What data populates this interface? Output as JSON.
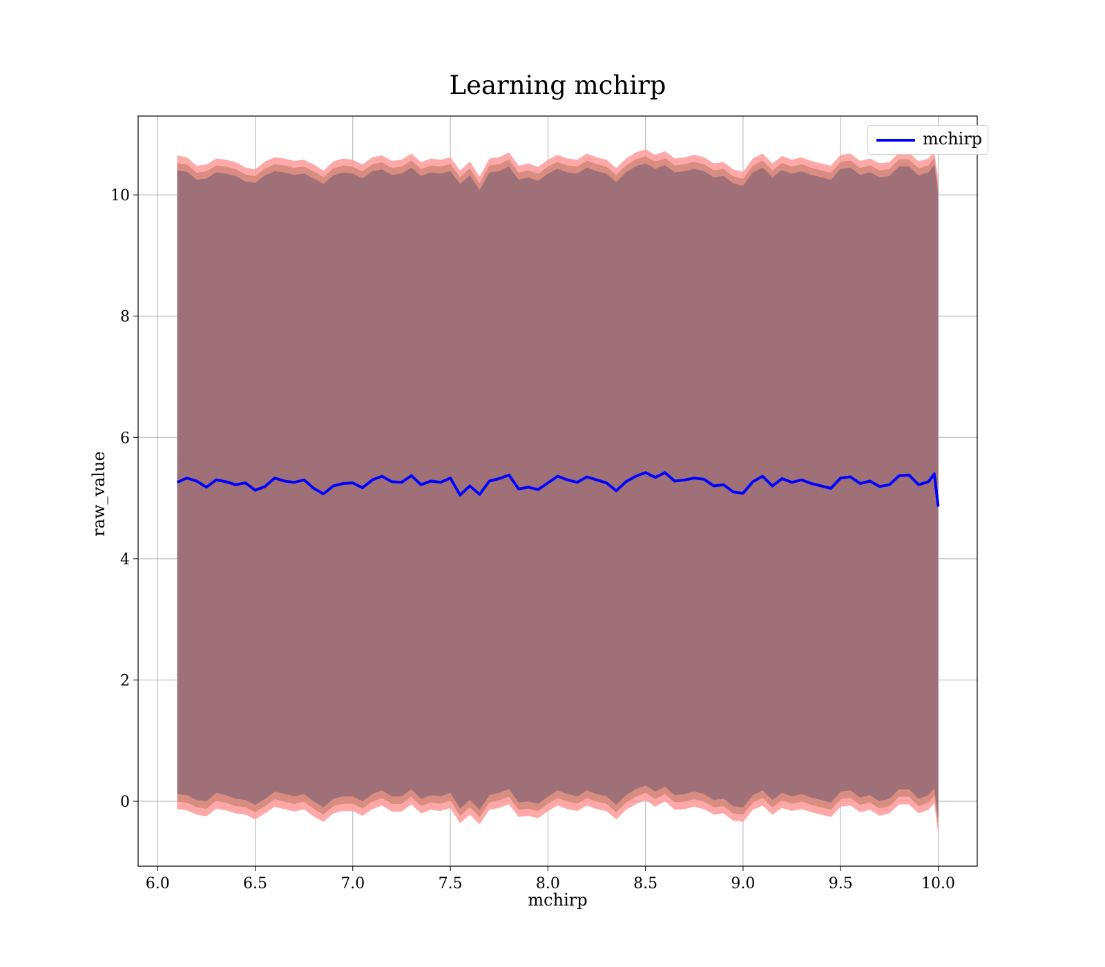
{
  "chart_data": {
    "type": "line",
    "title": "Learning mchirp",
    "xlabel": "mchirp",
    "ylabel": "raw_value",
    "xlim": [
      5.9,
      10.2
    ],
    "ylim": [
      -1.07,
      11.3
    ],
    "xticks": [
      "6.0",
      "6.5",
      "7.0",
      "7.5",
      "8.0",
      "8.5",
      "9.0",
      "9.5",
      "10.0"
    ],
    "xtick_values": [
      6.0,
      6.5,
      7.0,
      7.5,
      8.0,
      8.5,
      9.0,
      9.5,
      10.0
    ],
    "yticks": [
      "0",
      "2",
      "4",
      "6",
      "8",
      "10"
    ],
    "ytick_values": [
      0,
      2,
      4,
      6,
      8,
      10
    ],
    "grid": true,
    "legend_position": "top-right",
    "colors": {
      "line": "#0000ff",
      "band_outer": "#ff9999",
      "band_middle": "#d98c80",
      "band_inner": "#a07078",
      "grid": "#b0b0b0"
    },
    "series": [
      {
        "name": "mchirp",
        "x": [
          6.1,
          6.15,
          6.2,
          6.25,
          6.3,
          6.35,
          6.4,
          6.45,
          6.5,
          6.55,
          6.6,
          6.65,
          6.7,
          6.75,
          6.8,
          6.85,
          6.9,
          6.95,
          7.0,
          7.05,
          7.1,
          7.15,
          7.2,
          7.25,
          7.3,
          7.35,
          7.4,
          7.45,
          7.5,
          7.55,
          7.6,
          7.65,
          7.7,
          7.75,
          7.8,
          7.85,
          7.9,
          7.95,
          8.0,
          8.05,
          8.1,
          8.15,
          8.2,
          8.25,
          8.3,
          8.35,
          8.4,
          8.45,
          8.5,
          8.55,
          8.6,
          8.65,
          8.7,
          8.75,
          8.8,
          8.85,
          8.9,
          8.95,
          9.0,
          9.05,
          9.1,
          9.15,
          9.2,
          9.25,
          9.3,
          9.35,
          9.4,
          9.45,
          9.5,
          9.55,
          9.6,
          9.65,
          9.7,
          9.75,
          9.8,
          9.85,
          9.9,
          9.95,
          9.98,
          10.0
        ],
        "values": [
          5.26,
          5.33,
          5.28,
          5.18,
          5.3,
          5.27,
          5.22,
          5.25,
          5.13,
          5.19,
          5.33,
          5.28,
          5.26,
          5.3,
          5.16,
          5.07,
          5.2,
          5.24,
          5.25,
          5.17,
          5.3,
          5.36,
          5.27,
          5.26,
          5.37,
          5.22,
          5.28,
          5.26,
          5.33,
          5.05,
          5.2,
          5.06,
          5.28,
          5.32,
          5.38,
          5.15,
          5.18,
          5.14,
          5.25,
          5.36,
          5.3,
          5.26,
          5.35,
          5.3,
          5.25,
          5.12,
          5.27,
          5.36,
          5.42,
          5.34,
          5.42,
          5.28,
          5.3,
          5.33,
          5.31,
          5.2,
          5.22,
          5.1,
          5.08,
          5.27,
          5.36,
          5.2,
          5.32,
          5.26,
          5.3,
          5.24,
          5.2,
          5.16,
          5.33,
          5.35,
          5.24,
          5.28,
          5.19,
          5.22,
          5.37,
          5.38,
          5.22,
          5.27,
          5.4,
          4.86
        ],
        "band_outer_upper": [
          10.65,
          10.62,
          10.48,
          10.5,
          10.6,
          10.58,
          10.54,
          10.45,
          10.42,
          10.55,
          10.62,
          10.6,
          10.56,
          10.58,
          10.5,
          10.4,
          10.55,
          10.6,
          10.58,
          10.5,
          10.62,
          10.65,
          10.56,
          10.58,
          10.68,
          10.54,
          10.6,
          10.58,
          10.62,
          10.4,
          10.55,
          10.3,
          10.6,
          10.62,
          10.7,
          10.48,
          10.52,
          10.46,
          10.58,
          10.66,
          10.6,
          10.58,
          10.68,
          10.62,
          10.58,
          10.44,
          10.6,
          10.7,
          10.75,
          10.66,
          10.72,
          10.6,
          10.62,
          10.66,
          10.62,
          10.52,
          10.54,
          10.42,
          10.38,
          10.6,
          10.68,
          10.52,
          10.64,
          10.58,
          10.62,
          10.56,
          10.52,
          10.48,
          10.66,
          10.68,
          10.56,
          10.6,
          10.52,
          10.54,
          10.7,
          10.7,
          10.55,
          10.6,
          10.72,
          10.25
        ],
        "band_inner_upper": [
          10.4,
          10.38,
          10.25,
          10.27,
          10.37,
          10.35,
          10.31,
          10.22,
          10.2,
          10.32,
          10.39,
          10.37,
          10.33,
          10.35,
          10.27,
          10.18,
          10.32,
          10.37,
          10.35,
          10.27,
          10.39,
          10.42,
          10.33,
          10.35,
          10.45,
          10.31,
          10.37,
          10.35,
          10.39,
          10.18,
          10.32,
          10.08,
          10.37,
          10.39,
          10.47,
          10.25,
          10.29,
          10.23,
          10.35,
          10.43,
          10.37,
          10.35,
          10.45,
          10.39,
          10.35,
          10.21,
          10.37,
          10.47,
          10.52,
          10.43,
          10.49,
          10.37,
          10.39,
          10.43,
          10.39,
          10.29,
          10.31,
          10.19,
          10.15,
          10.37,
          10.45,
          10.29,
          10.41,
          10.35,
          10.39,
          10.33,
          10.29,
          10.25,
          10.43,
          10.45,
          10.33,
          10.37,
          10.29,
          10.31,
          10.47,
          10.47,
          10.32,
          10.37,
          10.49,
          10.02
        ],
        "band_inner_lower": [
          0.12,
          0.1,
          0.02,
          0.0,
          0.14,
          0.1,
          0.04,
          0.02,
          -0.06,
          0.04,
          0.16,
          0.12,
          0.08,
          0.12,
          0.0,
          -0.1,
          0.04,
          0.08,
          0.08,
          0.0,
          0.12,
          0.18,
          0.08,
          0.08,
          0.2,
          0.04,
          0.1,
          0.08,
          0.14,
          -0.12,
          0.02,
          -0.14,
          0.1,
          0.14,
          0.2,
          -0.02,
          0.0,
          -0.04,
          0.08,
          0.18,
          0.12,
          0.08,
          0.18,
          0.12,
          0.08,
          -0.06,
          0.1,
          0.2,
          0.26,
          0.16,
          0.24,
          0.1,
          0.12,
          0.16,
          0.12,
          0.02,
          0.04,
          -0.08,
          -0.1,
          0.1,
          0.18,
          0.02,
          0.14,
          0.08,
          0.12,
          0.06,
          0.02,
          -0.02,
          0.16,
          0.18,
          0.06,
          0.1,
          0.0,
          0.04,
          0.2,
          0.2,
          0.04,
          0.1,
          0.22,
          -0.3
        ],
        "band_outer_lower": [
          -0.13,
          -0.15,
          -0.22,
          -0.25,
          -0.12,
          -0.15,
          -0.2,
          -0.22,
          -0.3,
          -0.2,
          -0.09,
          -0.13,
          -0.17,
          -0.13,
          -0.25,
          -0.34,
          -0.2,
          -0.16,
          -0.16,
          -0.24,
          -0.13,
          -0.07,
          -0.17,
          -0.17,
          -0.05,
          -0.2,
          -0.14,
          -0.16,
          -0.11,
          -0.36,
          -0.22,
          -0.38,
          -0.14,
          -0.11,
          -0.05,
          -0.26,
          -0.24,
          -0.28,
          -0.16,
          -0.07,
          -0.13,
          -0.16,
          -0.07,
          -0.13,
          -0.16,
          -0.3,
          -0.14,
          -0.05,
          0.02,
          -0.09,
          0.0,
          -0.14,
          -0.13,
          -0.09,
          -0.13,
          -0.22,
          -0.2,
          -0.32,
          -0.34,
          -0.14,
          -0.07,
          -0.22,
          -0.11,
          -0.16,
          -0.13,
          -0.18,
          -0.22,
          -0.26,
          -0.09,
          -0.07,
          -0.18,
          -0.14,
          -0.24,
          -0.2,
          -0.05,
          -0.05,
          -0.2,
          -0.14,
          -0.03,
          -0.55
        ]
      }
    ]
  }
}
